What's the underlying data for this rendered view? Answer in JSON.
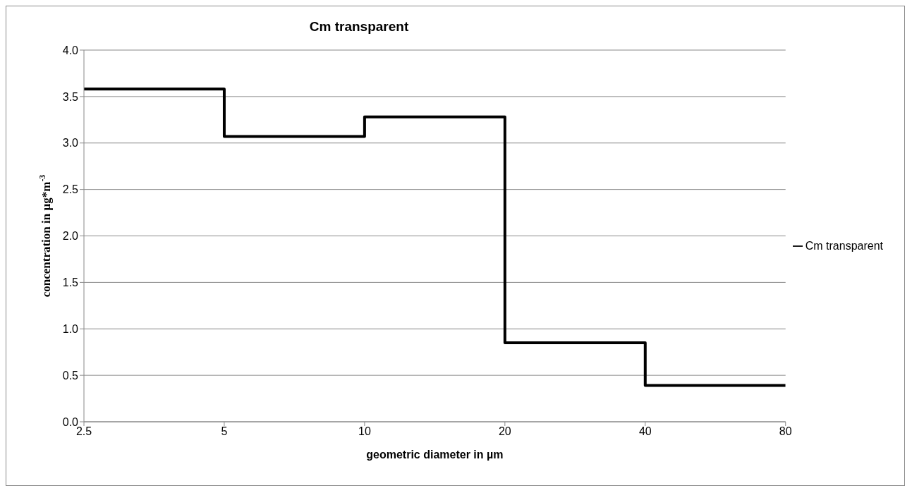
{
  "chart_data": {
    "type": "step",
    "title": "Cm transparent",
    "xlabel": "geometric diameter in µm",
    "ylabel": "concentration in µg*m$^{-3}$",
    "x": [
      2.5,
      5,
      10,
      20,
      40,
      80
    ],
    "series": [
      {
        "name": "Cm transparent",
        "color": "#000000",
        "values": [
          3.58,
          3.07,
          3.28,
          0.85,
          0.39,
          0.39
        ]
      }
    ],
    "log": "x",
    "xlim": [
      2.5,
      80
    ],
    "xticks": [
      2.5,
      5,
      10,
      20,
      40,
      80
    ],
    "ylim": [
      0,
      4
    ],
    "yticks": [
      {
        "value": 0,
        "label": "0.0"
      },
      0.5,
      {
        "value": 1,
        "label": "1.0"
      },
      1.5,
      {
        "value": 2,
        "label": "2.0"
      },
      2.5,
      {
        "value": 3,
        "label": "3.0"
      },
      3.5,
      {
        "value": 4,
        "label": "4.0"
      }
    ],
    "grid": "y",
    "legend": "right",
    "marker": "none",
    "line_style": "solid"
  }
}
